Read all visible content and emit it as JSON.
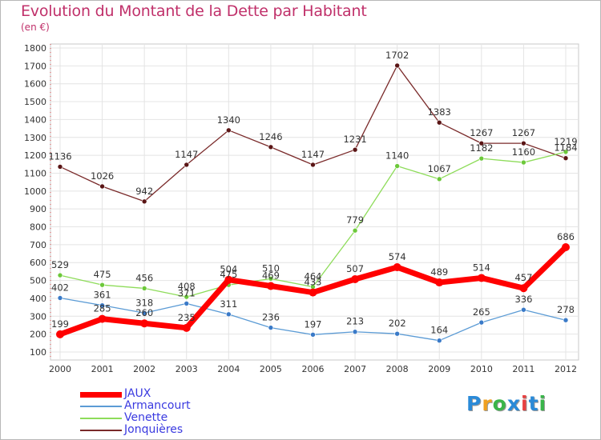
{
  "title": "Evolution du Montant de la Dette par Habitant",
  "subtitle": "(en €)",
  "chart_data": {
    "type": "line",
    "title": "Evolution du Montant de la Dette par Habitant",
    "ylabel": "(en €)",
    "xlabel": "",
    "categories": [
      "2000",
      "2001",
      "2002",
      "2003",
      "2004",
      "2005",
      "2006",
      "2007",
      "2008",
      "2009",
      "2010",
      "2011",
      "2012"
    ],
    "ylim": [
      100,
      1800
    ],
    "yticks": [
      100,
      200,
      300,
      400,
      500,
      600,
      700,
      800,
      900,
      1000,
      1100,
      1200,
      1300,
      1400,
      1500,
      1600,
      1700,
      1800
    ],
    "grid": true,
    "legend_position": "bottom-left",
    "series": [
      {
        "name": "JAUX",
        "color": "#ff0000",
        "values": [
          199,
          285,
          260,
          235,
          504,
          469,
          433,
          507,
          574,
          489,
          514,
          457,
          686
        ]
      },
      {
        "name": "Armancourt",
        "color": "#5b9bd5",
        "values": [
          402,
          361,
          318,
          371,
          311,
          236,
          197,
          213,
          202,
          164,
          265,
          336,
          278
        ]
      },
      {
        "name": "Venette",
        "color": "#8edc5a",
        "values": [
          529,
          475,
          456,
          408,
          475,
          510,
          464,
          779,
          1140,
          1067,
          1182,
          1160,
          1219
        ]
      },
      {
        "name": "Jonquières",
        "color": "#7a2a2a",
        "values": [
          1136,
          1026,
          942,
          1147,
          1340,
          1246,
          1147,
          1231,
          1702,
          1383,
          1267,
          1267,
          1184
        ]
      }
    ]
  },
  "logo": {
    "text": "Proxiti",
    "letters": [
      "P",
      "r",
      "o",
      "x",
      "i",
      "t",
      "i"
    ],
    "colors": [
      "#2a8ad8",
      "#f0a020",
      "#3ab54a",
      "#2a8ad8",
      "#e84040",
      "#2a8ad8",
      "#3ab54a"
    ]
  }
}
